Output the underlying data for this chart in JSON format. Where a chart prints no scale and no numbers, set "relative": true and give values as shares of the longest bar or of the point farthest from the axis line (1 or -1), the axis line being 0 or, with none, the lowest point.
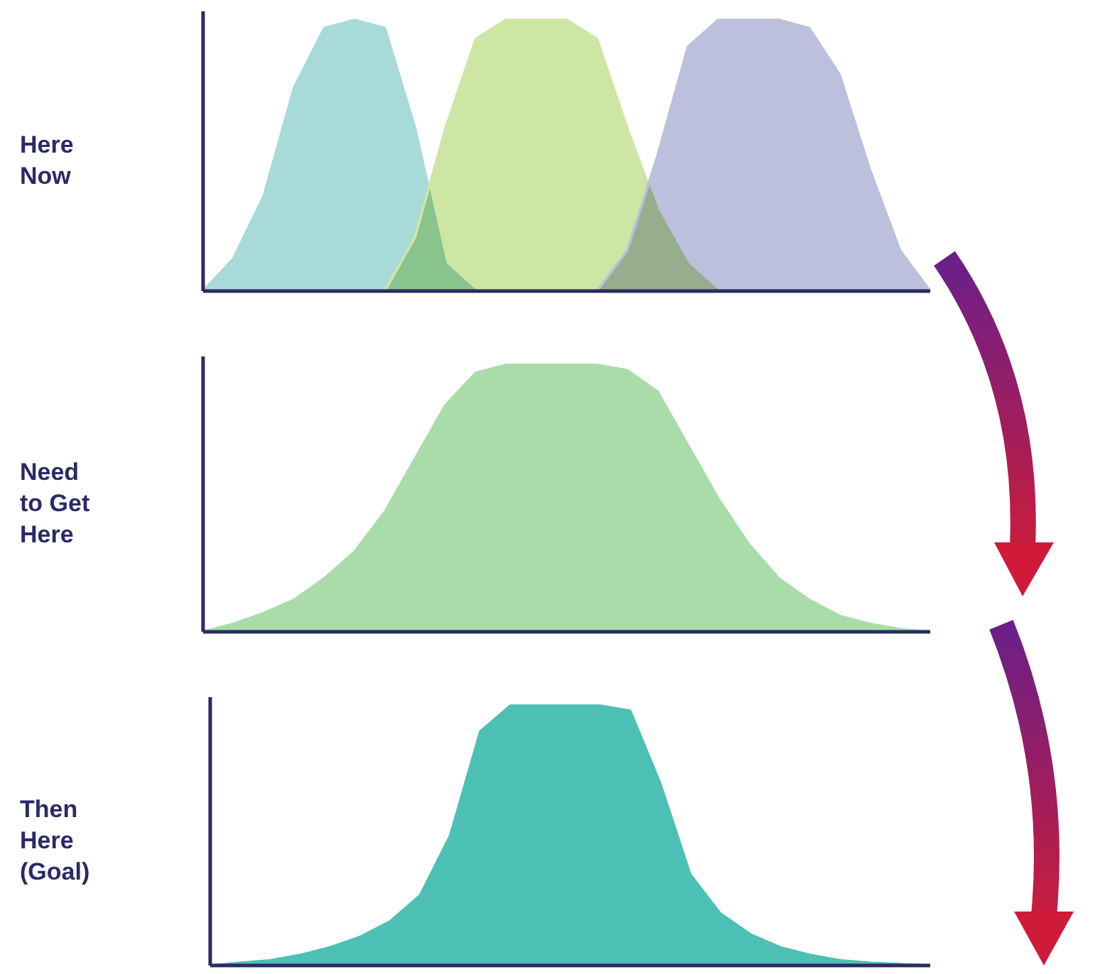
{
  "chart_data": [
    {
      "type": "area",
      "ylabel": "Here\nNow",
      "relative": true,
      "categories": [
        null,
        null,
        null,
        null,
        null,
        null,
        null,
        null,
        null,
        null,
        null,
        null,
        null,
        null,
        null,
        null,
        null,
        null,
        null,
        null,
        null,
        null,
        null,
        null,
        null
      ],
      "series": [
        {
          "color": "#a9dada",
          "values": [
            0,
            0.12,
            0.35,
            0.75,
            0.97,
            1,
            0.97,
            0.6,
            0.1,
            0,
            null,
            null,
            null,
            null,
            null,
            null,
            null,
            null,
            null,
            null,
            null,
            null,
            null,
            null,
            null
          ]
        },
        {
          "color": "#cde6a4",
          "values": [
            null,
            null,
            null,
            null,
            null,
            null,
            0,
            0.2,
            0.6,
            0.93,
            1,
            1,
            1,
            0.93,
            0.6,
            0.3,
            0.1,
            0,
            null,
            null,
            null,
            null,
            null,
            null,
            null
          ]
        },
        {
          "color": "#bcc0dc",
          "values": [
            null,
            null,
            null,
            null,
            null,
            null,
            null,
            null,
            null,
            null,
            null,
            null,
            null,
            0,
            0.15,
            0.5,
            0.9,
            1,
            1,
            1,
            0.97,
            0.8,
            0.45,
            0.15,
            0
          ]
        }
      ]
    },
    {
      "type": "area",
      "ylabel": "Need\nto Get\nHere",
      "relative": true,
      "categories": [
        null,
        null,
        null,
        null,
        null,
        null,
        null,
        null,
        null,
        null,
        null,
        null,
        null,
        null,
        null,
        null,
        null,
        null,
        null,
        null,
        null,
        null,
        null,
        null,
        null
      ],
      "series": [
        {
          "color": "#aadcaa",
          "values": [
            0,
            0.03,
            0.07,
            0.12,
            0.2,
            0.3,
            0.45,
            0.65,
            0.85,
            0.97,
            1,
            1,
            1,
            1,
            0.98,
            0.9,
            0.7,
            0.5,
            0.33,
            0.2,
            0.12,
            0.06,
            0.03,
            0.01,
            0
          ]
        }
      ]
    },
    {
      "type": "area",
      "ylabel": "Then\nHere\n(Goal)",
      "relative": true,
      "categories": [
        null,
        null,
        null,
        null,
        null,
        null,
        null,
        null,
        null,
        null,
        null,
        null,
        null,
        null,
        null,
        null,
        null,
        null,
        null,
        null,
        null,
        null,
        null,
        null,
        null
      ],
      "series": [
        {
          "color": "#4cc0b4",
          "values": [
            0,
            0.01,
            0.02,
            0.04,
            0.07,
            0.11,
            0.17,
            0.27,
            0.5,
            0.9,
            1,
            1,
            1,
            1,
            0.98,
            0.7,
            0.35,
            0.2,
            0.12,
            0.07,
            0.04,
            0.02,
            0.01,
            0.005,
            0
          ]
        }
      ]
    }
  ]
}
